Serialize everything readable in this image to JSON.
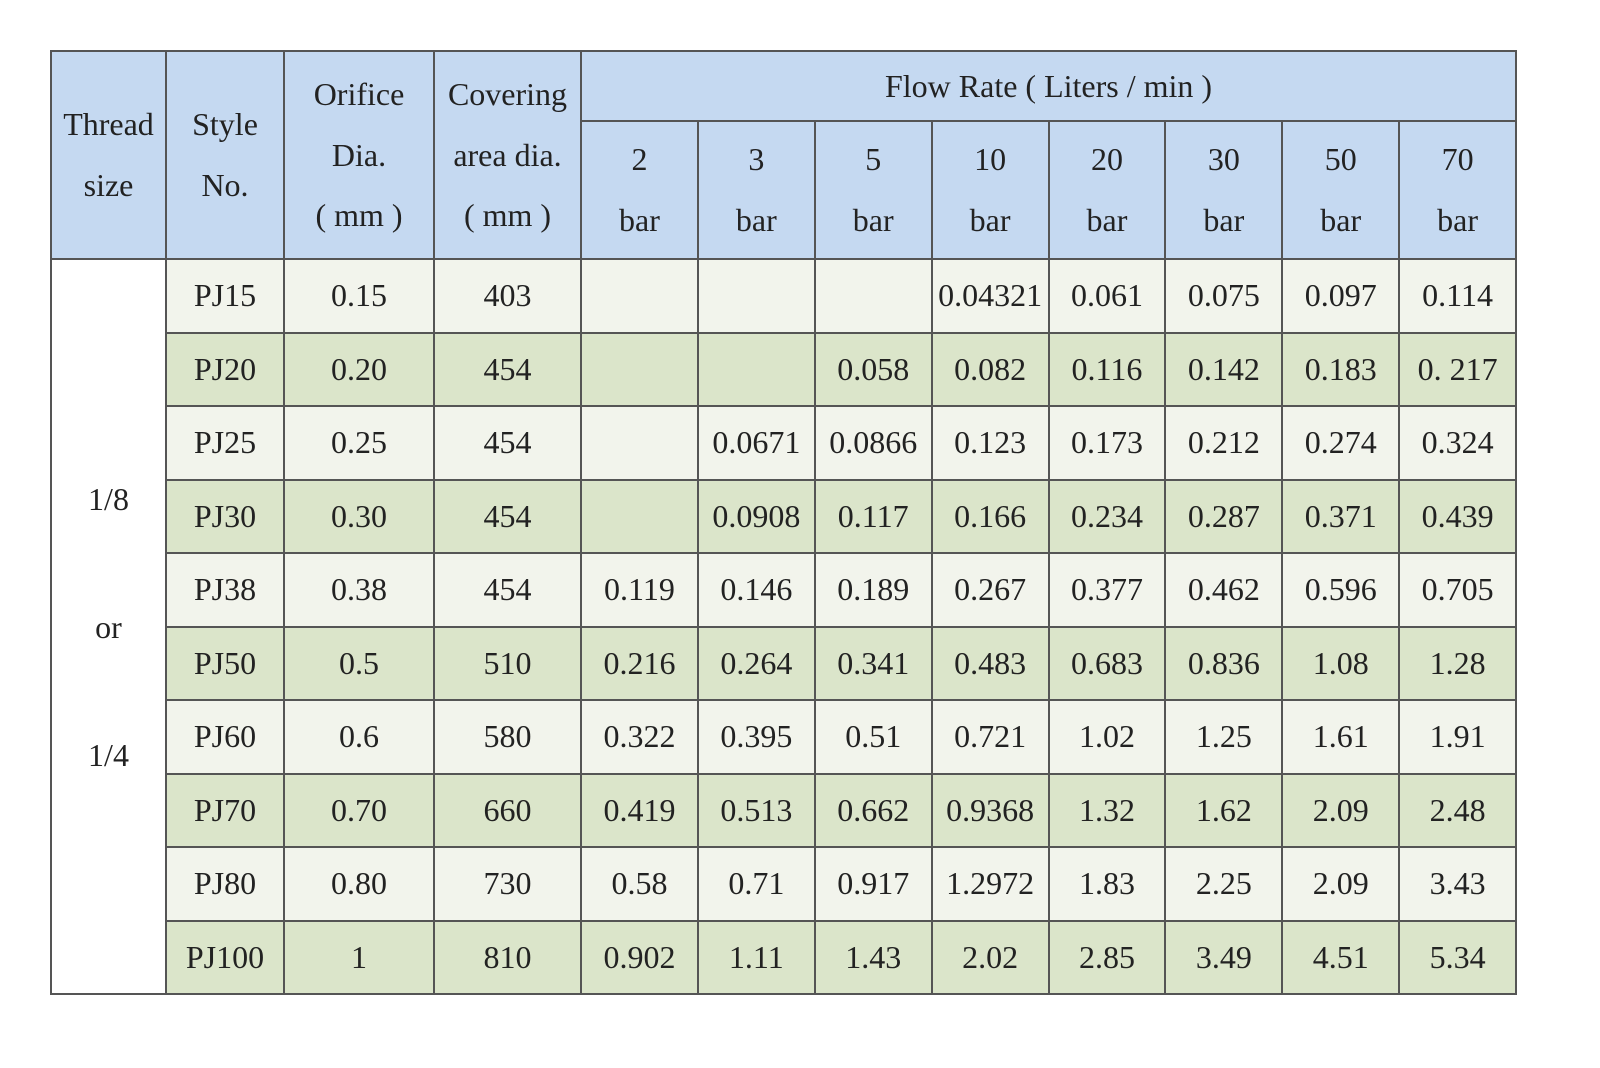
{
  "table": {
    "header": {
      "thread_size": [
        "Thread",
        "size"
      ],
      "style_no": [
        "Style",
        "No."
      ],
      "orifice": [
        "Orifice",
        "Dia.",
        "( mm )"
      ],
      "covering": [
        "Covering",
        "area dia.",
        "( mm )"
      ],
      "flow_rate": "Flow Rate ( Liters / min )",
      "pressures": [
        [
          "2",
          "bar"
        ],
        [
          "3",
          "bar"
        ],
        [
          "5",
          "bar"
        ],
        [
          "10",
          "bar"
        ],
        [
          "20",
          "bar"
        ],
        [
          "30",
          "bar"
        ],
        [
          "50",
          "bar"
        ],
        [
          "70",
          "bar"
        ]
      ]
    },
    "thread_size": [
      "1/8",
      "or",
      "1/4"
    ],
    "rows": [
      [
        "PJ15",
        "0.15",
        "403",
        null,
        null,
        null,
        "0.04321",
        "0.061",
        "0.075",
        "0.097",
        "0.114"
      ],
      [
        "PJ20",
        "0.20",
        "454",
        null,
        null,
        "0.058",
        "0.082",
        "0.116",
        "0.142",
        "0.183",
        "0. 217"
      ],
      [
        "PJ25",
        "0.25",
        "454",
        null,
        "0.0671",
        "0.0866",
        "0.123",
        "0.173",
        "0.212",
        "0.274",
        "0.324"
      ],
      [
        "PJ30",
        "0.30",
        "454",
        null,
        "0.0908",
        "0.117",
        "0.166",
        "0.234",
        "0.287",
        "0.371",
        "0.439"
      ],
      [
        "PJ38",
        "0.38",
        "454",
        "0.119",
        "0.146",
        "0.189",
        "0.267",
        "0.377",
        "0.462",
        "0.596",
        "0.705"
      ],
      [
        "PJ50",
        "0.5",
        "510",
        "0.216",
        "0.264",
        "0.341",
        "0.483",
        "0.683",
        "0.836",
        "1.08",
        "1.28"
      ],
      [
        "PJ60",
        "0.6",
        "580",
        "0.322",
        "0.395",
        "0.51",
        "0.721",
        "1.02",
        "1.25",
        "1.61",
        "1.91"
      ],
      [
        "PJ70",
        "0.70",
        "660",
        "0.419",
        "0.513",
        "0.662",
        "0.9368",
        "1.32",
        "1.62",
        "2.09",
        "2.48"
      ],
      [
        "PJ80",
        "0.80",
        "730",
        "0.58",
        "0.71",
        "0.917",
        "1.2972",
        "1.83",
        "2.25",
        "2.09",
        "3.43"
      ],
      [
        "PJ100",
        "1",
        "810",
        "0.902",
        "1.11",
        "1.43",
        "2.02",
        "2.85",
        "3.49",
        "4.51",
        "5.34"
      ]
    ]
  }
}
